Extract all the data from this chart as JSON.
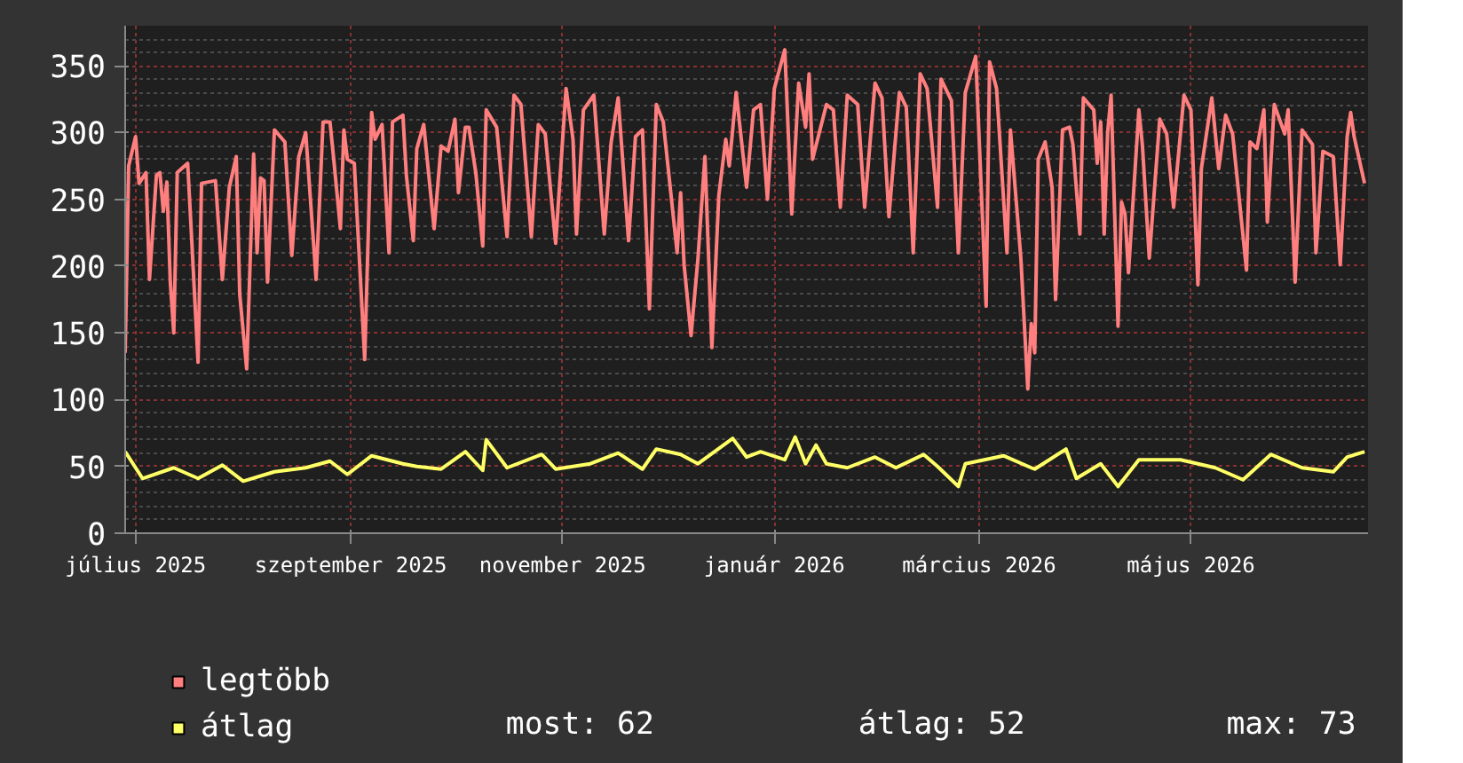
{
  "chart_data": {
    "type": "line",
    "xlim": [
      "2025-06-28",
      "2026-06-21"
    ],
    "ylim": [
      0,
      380
    ],
    "yticks": [
      0,
      50,
      100,
      150,
      200,
      250,
      300,
      350
    ],
    "xticks": [
      {
        "value": "2025-07-01",
        "label": "július 2025"
      },
      {
        "value": "2025-09-01",
        "label": "szeptember 2025"
      },
      {
        "value": "2025-11-01",
        "label": "november 2025"
      },
      {
        "value": "2026-01-01",
        "label": "január 2026"
      },
      {
        "value": "2026-03-01",
        "label": "március 2026"
      },
      {
        "value": "2026-05-01",
        "label": "május 2026"
      }
    ],
    "grid": true,
    "legend": "bottom",
    "marker": "none",
    "line_style": "solid",
    "annotations": [
      "most: 62",
      "átlag: 52",
      "max: 73"
    ],
    "series": [
      {
        "name": "legtöbb",
        "color": "#ff7f7f",
        "x": [
          "2025-06-28",
          "2025-06-29",
          "2025-07-01",
          "2025-07-02",
          "2025-07-04",
          "2025-07-05",
          "2025-07-07",
          "2025-07-08",
          "2025-07-09",
          "2025-07-10",
          "2025-07-11",
          "2025-07-12",
          "2025-07-13",
          "2025-07-16",
          "2025-07-17",
          "2025-07-19",
          "2025-07-20",
          "2025-07-24",
          "2025-07-26",
          "2025-07-28",
          "2025-07-30",
          "2025-07-31",
          "2025-08-02",
          "2025-08-04",
          "2025-08-05",
          "2025-08-06",
          "2025-08-07",
          "2025-08-08",
          "2025-08-10",
          "2025-08-13",
          "2025-08-15",
          "2025-08-17",
          "2025-08-19",
          "2025-08-22",
          "2025-08-24",
          "2025-08-26",
          "2025-08-27",
          "2025-08-29",
          "2025-08-30",
          "2025-08-31",
          "2025-09-02",
          "2025-09-05",
          "2025-09-07",
          "2025-09-08",
          "2025-09-10",
          "2025-09-12",
          "2025-09-13",
          "2025-09-16",
          "2025-09-17",
          "2025-09-19",
          "2025-09-20",
          "2025-09-22",
          "2025-09-25",
          "2025-09-27",
          "2025-09-29",
          "2025-10-01",
          "2025-10-02",
          "2025-10-04",
          "2025-10-05",
          "2025-10-07",
          "2025-10-09",
          "2025-10-10",
          "2025-10-13",
          "2025-10-16",
          "2025-10-18",
          "2025-10-20",
          "2025-10-23",
          "2025-10-25",
          "2025-10-27",
          "2025-10-30",
          "2025-11-02",
          "2025-11-04",
          "2025-11-05",
          "2025-11-07",
          "2025-11-10",
          "2025-11-13",
          "2025-11-15",
          "2025-11-17",
          "2025-11-20",
          "2025-11-22",
          "2025-11-24",
          "2025-11-26",
          "2025-11-28",
          "2025-11-30",
          "2025-12-04",
          "2025-12-05",
          "2025-12-06",
          "2025-12-08",
          "2025-12-10",
          "2025-12-12",
          "2025-12-14",
          "2025-12-16",
          "2025-12-18",
          "2025-12-19",
          "2025-12-21",
          "2025-12-24",
          "2025-12-26",
          "2025-12-28",
          "2025-12-30",
          "2026-01-01",
          "2026-01-04",
          "2026-01-06",
          "2026-01-08",
          "2026-01-10",
          "2026-01-11",
          "2026-01-12",
          "2026-01-16",
          "2026-01-18",
          "2026-01-20",
          "2026-01-22",
          "2026-01-25",
          "2026-01-27",
          "2026-01-30",
          "2026-02-01",
          "2026-02-03",
          "2026-02-06",
          "2026-02-08",
          "2026-02-10",
          "2026-02-12",
          "2026-02-14",
          "2026-02-17",
          "2026-02-18",
          "2026-02-21",
          "2026-02-23",
          "2026-02-25",
          "2026-02-28",
          "2026-03-03",
          "2026-03-04",
          "2026-03-06",
          "2026-03-09",
          "2026-03-10",
          "2026-03-13",
          "2026-03-15",
          "2026-03-16",
          "2026-03-17",
          "2026-03-18",
          "2026-03-20",
          "2026-03-22",
          "2026-03-23",
          "2026-03-25",
          "2026-03-27",
          "2026-03-28",
          "2026-03-30",
          "2026-03-31",
          "2026-04-03",
          "2026-04-04",
          "2026-04-05",
          "2026-04-06",
          "2026-04-07",
          "2026-04-08",
          "2026-04-10",
          "2026-04-11",
          "2026-04-12",
          "2026-04-13",
          "2026-04-16",
          "2026-04-17",
          "2026-04-19",
          "2026-04-22",
          "2026-04-24",
          "2026-04-26",
          "2026-04-29",
          "2026-05-01",
          "2026-05-03",
          "2026-05-04",
          "2026-05-07",
          "2026-05-09",
          "2026-05-11",
          "2026-05-13",
          "2026-05-17",
          "2026-05-18",
          "2026-05-20",
          "2026-05-22",
          "2026-05-23",
          "2026-05-25",
          "2026-05-28",
          "2026-05-29",
          "2026-05-31",
          "2026-06-02",
          "2026-06-05",
          "2026-06-06",
          "2026-06-08",
          "2026-06-11",
          "2026-06-13",
          "2026-06-15",
          "2026-06-16",
          "2026-06-17",
          "2026-06-20"
        ],
        "values": [
          135,
          275,
          297,
          262,
          270,
          190,
          268,
          270,
          241,
          263,
          188,
          150,
          270,
          277,
          228,
          128,
          262,
          264,
          190,
          259,
          282,
          179,
          123,
          284,
          210,
          266,
          264,
          188,
          302,
          293,
          208,
          282,
          300,
          190,
          308,
          308,
          282,
          228,
          302,
          280,
          277,
          130,
          315,
          295,
          306,
          210,
          308,
          313,
          268,
          219,
          288,
          306,
          228,
          290,
          286,
          310,
          255,
          304,
          304,
          270,
          215,
          317,
          304,
          222,
          328,
          321,
          222,
          306,
          299,
          217,
          333,
          295,
          224,
          317,
          328,
          224,
          293,
          326,
          219,
          297,
          302,
          168,
          321,
          308,
          210,
          255,
          201,
          148,
          206,
          282,
          139,
          253,
          295,
          275,
          330,
          259,
          317,
          321,
          250,
          333,
          362,
          239,
          337,
          304,
          344,
          280,
          321,
          317,
          244,
          328,
          321,
          244,
          337,
          326,
          237,
          330,
          319,
          210,
          344,
          333,
          244,
          340,
          324,
          210,
          330,
          357,
          170,
          353,
          333,
          210,
          302,
          206,
          108,
          157,
          135,
          280,
          293,
          259,
          175,
          302,
          304,
          291,
          224,
          326,
          317,
          277,
          308,
          224,
          300,
          328,
          155,
          248,
          239,
          195,
          317,
          291,
          206,
          310,
          299,
          244,
          328,
          317,
          186,
          273,
          326,
          273,
          313,
          299,
          197,
          293,
          288,
          317,
          233,
          321,
          299,
          317,
          188,
          302,
          291,
          210,
          286,
          282,
          201,
          297,
          315,
          297,
          262
        ]
      },
      {
        "name": "átlag",
        "color": "#ffff66",
        "x": [
          "2025-06-28",
          "2025-07-03",
          "2025-07-12",
          "2025-07-19",
          "2025-07-26",
          "2025-08-01",
          "2025-08-10",
          "2025-08-19",
          "2025-08-26",
          "2025-08-31",
          "2025-09-07",
          "2025-09-16",
          "2025-09-20",
          "2025-09-27",
          "2025-10-04",
          "2025-10-09",
          "2025-10-10",
          "2025-10-16",
          "2025-10-26",
          "2025-10-30",
          "2025-11-09",
          "2025-11-17",
          "2025-11-24",
          "2025-11-28",
          "2025-12-05",
          "2025-12-10",
          "2025-12-20",
          "2025-12-24",
          "2025-12-28",
          "2026-01-04",
          "2026-01-07",
          "2026-01-10",
          "2026-01-13",
          "2026-01-16",
          "2026-01-22",
          "2026-01-30",
          "2026-02-05",
          "2026-02-13",
          "2026-02-17",
          "2026-02-23",
          "2026-02-25",
          "2026-03-08",
          "2026-03-16",
          "2026-03-17",
          "2026-03-26",
          "2026-03-29",
          "2026-04-05",
          "2026-04-10",
          "2026-04-16",
          "2026-04-28",
          "2026-05-08",
          "2026-05-16",
          "2026-05-24",
          "2026-06-02",
          "2026-06-11",
          "2026-06-15",
          "2026-06-20"
        ],
        "values": [
          61,
          41,
          49,
          41,
          51,
          39,
          46,
          49,
          54,
          44,
          58,
          52,
          50,
          48,
          61,
          47,
          70,
          49,
          59,
          48,
          52,
          60,
          48,
          63,
          59,
          52,
          71,
          57,
          61,
          55,
          72,
          52,
          66,
          52,
          49,
          57,
          49,
          59,
          50,
          35,
          52,
          58,
          49,
          48,
          63,
          41,
          52,
          35,
          55,
          55,
          49,
          40,
          59,
          49,
          46,
          57,
          61
        ]
      }
    ]
  }
}
